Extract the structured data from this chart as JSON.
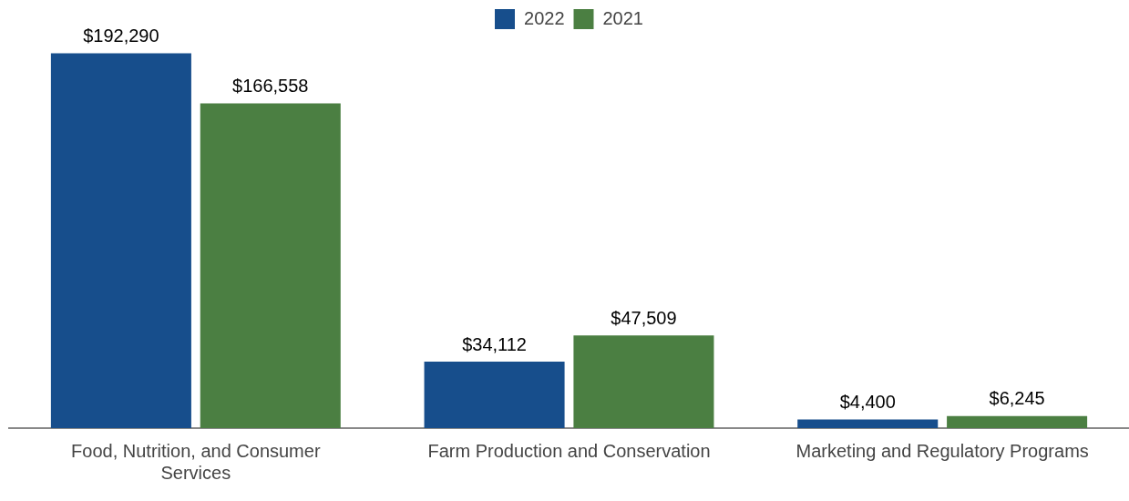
{
  "chart_data": {
    "type": "bar",
    "categories": [
      "Food, Nutrition, and Consumer Services",
      "Farm Production and Conservation",
      "Marketing and Regulatory Programs"
    ],
    "series": [
      {
        "name": "2022",
        "color": "#174e8c",
        "values": [
          192290,
          34112,
          4400
        ],
        "value_labels": [
          "$192,290",
          "$34,112",
          "$4,400"
        ]
      },
      {
        "name": "2021",
        "color": "#4b7f42",
        "values": [
          166558,
          47509,
          6245
        ],
        "value_labels": [
          "$166,558",
          "$47,509",
          "$6,245"
        ]
      }
    ],
    "grid": false,
    "legend": "top"
  }
}
